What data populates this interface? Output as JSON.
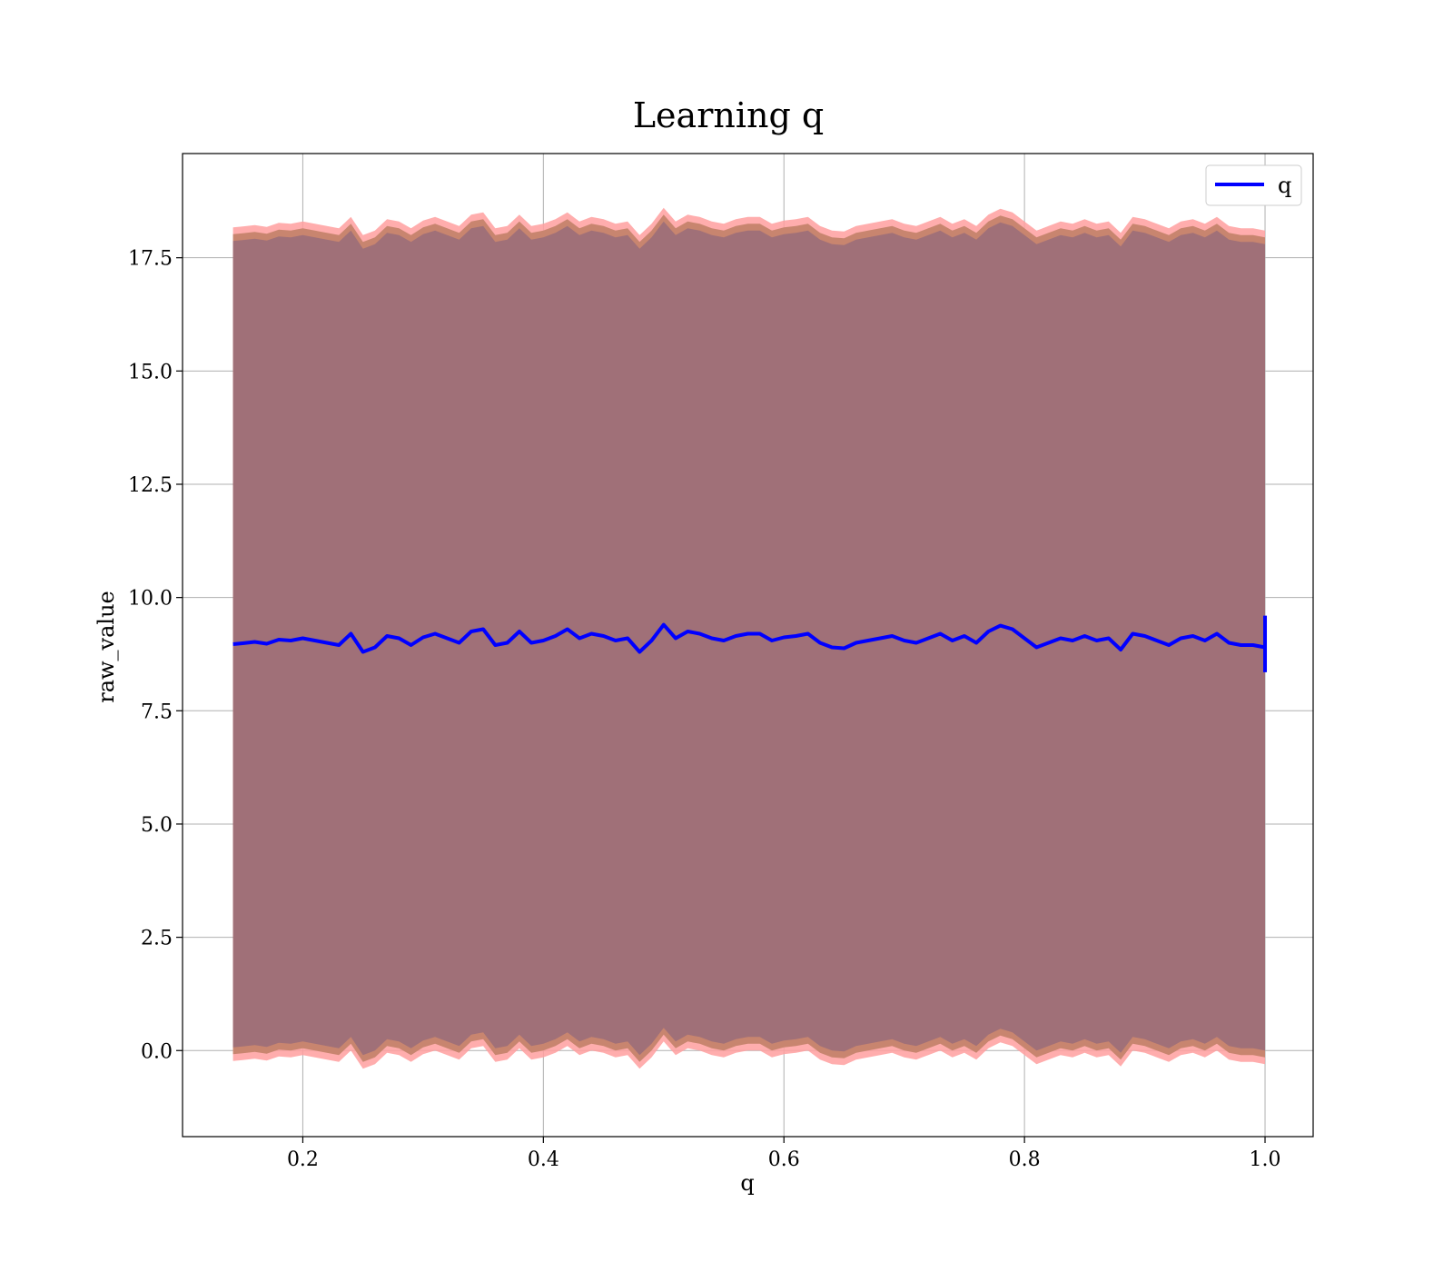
{
  "chart_data": {
    "type": "line",
    "title": "Learning q",
    "xlabel": "q",
    "ylabel": "raw_value",
    "xlim": [
      0.1,
      1.04
    ],
    "ylim": [
      -1.9,
      19.8
    ],
    "xticks": [
      {
        "value": 0.2,
        "label": "0.2"
      },
      {
        "value": 0.4,
        "label": "0.4"
      },
      {
        "value": 0.6,
        "label": "0.6"
      },
      {
        "value": 0.8,
        "label": "0.8"
      },
      {
        "value": 1.0,
        "label": "1.0"
      }
    ],
    "yticks": [
      {
        "value": 0.0,
        "label": "0.0"
      },
      {
        "value": 2.5,
        "label": "2.5"
      },
      {
        "value": 5.0,
        "label": "5.0"
      },
      {
        "value": 7.5,
        "label": "7.5"
      },
      {
        "value": 10.0,
        "label": "10.0"
      },
      {
        "value": 12.5,
        "label": "12.5"
      },
      {
        "value": 15.0,
        "label": "15.0"
      },
      {
        "value": 17.5,
        "label": "17.5"
      }
    ],
    "grid": true,
    "legend": {
      "position": "top-right",
      "entries": [
        "q"
      ]
    },
    "colors": {
      "line": "#0000ff",
      "outer_band": "#ff9f9f",
      "mid_band": "#c8856f",
      "inner_band": "#a07078"
    },
    "band_offsets": {
      "outer": 9.2,
      "mid": 9.05,
      "inner": 8.9
    },
    "series": [
      {
        "name": "q",
        "x": [
          0.142,
          0.15,
          0.16,
          0.17,
          0.18,
          0.19,
          0.2,
          0.21,
          0.22,
          0.23,
          0.24,
          0.25,
          0.26,
          0.27,
          0.28,
          0.29,
          0.3,
          0.31,
          0.32,
          0.33,
          0.34,
          0.35,
          0.36,
          0.37,
          0.38,
          0.39,
          0.4,
          0.41,
          0.42,
          0.43,
          0.44,
          0.45,
          0.46,
          0.47,
          0.48,
          0.49,
          0.5,
          0.51,
          0.52,
          0.53,
          0.54,
          0.55,
          0.56,
          0.57,
          0.58,
          0.59,
          0.6,
          0.61,
          0.62,
          0.63,
          0.64,
          0.65,
          0.66,
          0.67,
          0.68,
          0.69,
          0.7,
          0.71,
          0.72,
          0.73,
          0.74,
          0.75,
          0.76,
          0.77,
          0.78,
          0.79,
          0.8,
          0.81,
          0.82,
          0.83,
          0.84,
          0.85,
          0.86,
          0.87,
          0.88,
          0.89,
          0.9,
          0.91,
          0.92,
          0.93,
          0.94,
          0.95,
          0.96,
          0.97,
          0.98,
          0.99,
          1.0
        ],
        "y": [
          8.97,
          8.99,
          9.02,
          8.98,
          9.07,
          9.05,
          9.1,
          9.05,
          9.0,
          8.95,
          9.2,
          8.8,
          8.9,
          9.15,
          9.1,
          8.95,
          9.12,
          9.2,
          9.1,
          9.0,
          9.25,
          9.3,
          8.95,
          9.0,
          9.25,
          9.0,
          9.05,
          9.15,
          9.3,
          9.1,
          9.2,
          9.15,
          9.05,
          9.1,
          8.8,
          9.05,
          9.4,
          9.1,
          9.25,
          9.2,
          9.1,
          9.05,
          9.15,
          9.2,
          9.2,
          9.05,
          9.12,
          9.15,
          9.2,
          9.0,
          8.9,
          8.88,
          9.0,
          9.05,
          9.1,
          9.15,
          9.05,
          9.0,
          9.1,
          9.2,
          9.05,
          9.15,
          9.0,
          9.25,
          9.38,
          9.3,
          9.1,
          8.9,
          9.0,
          9.1,
          9.05,
          9.15,
          9.05,
          9.1,
          8.85,
          9.2,
          9.15,
          9.05,
          8.95,
          9.1,
          9.15,
          9.05,
          9.2,
          9.0,
          8.95,
          8.95,
          8.9
        ]
      }
    ],
    "end_spike": {
      "x": 1.0,
      "ymin": 8.35,
      "ymax": 9.6
    }
  }
}
